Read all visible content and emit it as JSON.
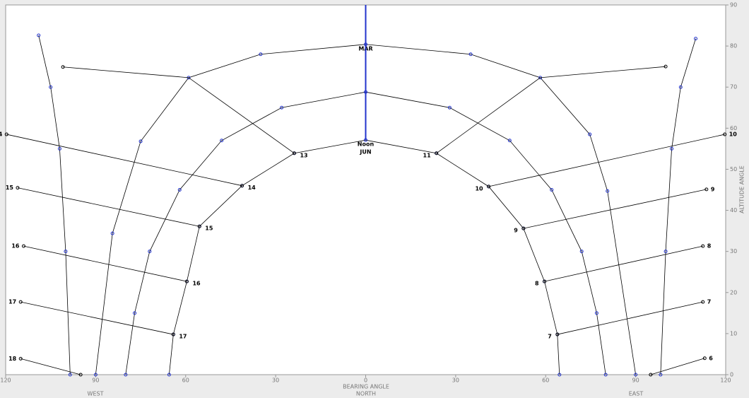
{
  "chart_data": {
    "type": "sunpath",
    "x_label": "BEARING ANGLE",
    "x_center_label": "NORTH",
    "x_left_label": "WEST",
    "x_right_label": "EAST",
    "y_label": "ALTITUDE ANGLE",
    "xlim": [
      -120,
      120
    ],
    "xticks": [
      {
        "value": -120,
        "label": "120"
      },
      {
        "value": -90,
        "label": "90"
      },
      {
        "value": -60,
        "label": "60"
      },
      {
        "value": -30,
        "label": "30"
      },
      0,
      {
        "value": 30,
        "label": "30"
      },
      {
        "value": 60,
        "label": "60"
      },
      {
        "value": 90,
        "label": "90"
      },
      {
        "value": 120,
        "label": "120"
      }
    ],
    "ylim": [
      0,
      90
    ],
    "yticks": [
      0,
      10,
      20,
      30,
      40,
      50,
      60,
      70,
      80,
      90
    ],
    "noon": {
      "name": "Noon",
      "x": [
        0,
        0
      ],
      "values": [
        57.1,
        90
      ],
      "color": "#2233cc"
    },
    "date_lines": [
      {
        "name": "JUN",
        "color": "#000000",
        "x": [
          -65.5,
          -64.1,
          -59.6,
          -55.4,
          -41.2,
          -23.8,
          0,
          23.6,
          41,
          52.6,
          59.6,
          63.9,
          64.6
        ],
        "values": [
          0,
          9.8,
          22.7,
          36.1,
          46,
          53.9,
          57.1,
          53.9,
          45.8,
          35.6,
          22.7,
          9.8,
          0
        ]
      },
      {
        "color": "#000000",
        "x": [
          -80,
          -77,
          -72,
          -62,
          -48,
          -28,
          0,
          28,
          48,
          62,
          72,
          77,
          80
        ],
        "values": [
          0,
          15,
          30,
          45,
          57,
          65,
          68.8,
          65,
          57,
          45,
          30,
          15,
          0
        ]
      },
      {
        "name": "MAR",
        "color": "#000000",
        "x": [
          -90,
          -84.4,
          -75,
          -59,
          -35,
          0,
          35,
          58.2,
          74.7,
          80.6,
          90
        ],
        "values": [
          0,
          34.4,
          56.8,
          72.3,
          78,
          80.4,
          78,
          72.3,
          58.5,
          44.7,
          0
        ]
      },
      {
        "color": "#000000",
        "x": [
          -98.5,
          -100,
          -102,
          -105,
          -109
        ],
        "values": [
          0,
          30,
          55,
          70,
          82.6
        ]
      },
      {
        "color": "#000000",
        "x": [
          98.3,
          100,
          102,
          105,
          110
        ],
        "values": [
          0,
          30,
          55,
          70,
          81.8
        ]
      }
    ],
    "hour_lines": [
      {
        "name": "13",
        "x": [
          -23.8,
          -59,
          -100.9
        ],
        "values": [
          53.9,
          72.3,
          74.9
        ]
      },
      {
        "name": "14",
        "x": [
          -41.2,
          -119.7
        ],
        "values": [
          46,
          58.5
        ]
      },
      {
        "name": "15",
        "x": [
          -55.4,
          -116
        ],
        "values": [
          36.1,
          45.5
        ]
      },
      {
        "name": "16",
        "x": [
          -59.6,
          -114
        ],
        "values": [
          22.7,
          31.3
        ]
      },
      {
        "name": "17",
        "x": [
          -64.1,
          -115
        ],
        "values": [
          9.8,
          17.7
        ]
      },
      {
        "name": "18",
        "x": [
          -95,
          -115
        ],
        "values": [
          0,
          3.9
        ]
      },
      {
        "name": "11",
        "x": [
          23.6,
          58.2,
          100
        ],
        "values": [
          53.9,
          72.3,
          75
        ]
      },
      {
        "name": "10",
        "x": [
          41,
          119.7
        ],
        "values": [
          45.8,
          58.5
        ]
      },
      {
        "name": "9",
        "x": [
          52.6,
          113.6
        ],
        "values": [
          35.6,
          45.1
        ]
      },
      {
        "name": "8",
        "x": [
          59.6,
          112.4
        ],
        "values": [
          22.7,
          31.3
        ]
      },
      {
        "name": "7",
        "x": [
          63.9,
          112.4
        ],
        "values": [
          9.8,
          17.7
        ]
      },
      {
        "name": "6",
        "x": [
          95,
          113
        ],
        "values": [
          0,
          4
        ]
      }
    ],
    "marker_color": "#2233cc"
  }
}
